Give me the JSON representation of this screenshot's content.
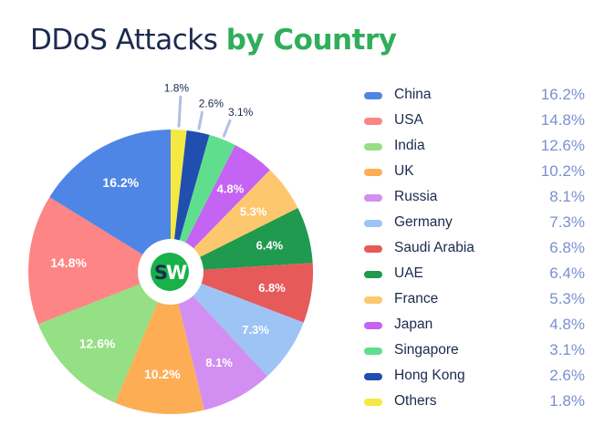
{
  "title": {
    "main": "DDoS Attacks",
    "accent": "by Country"
  },
  "logo": {
    "left": "S",
    "right": "W",
    "bg_color": "#18b14a",
    "left_color": "#1b2a4e",
    "right_color": "#ffffff"
  },
  "colors": {
    "title_text": "#1b2a4e",
    "title_accent": "#2fae5b",
    "legend_value": "#7b8fcf",
    "leader_line": "#aebfe8"
  },
  "chart_data": {
    "type": "pie",
    "title": "DDoS Attacks by Country",
    "donut_hole": true,
    "start_angle": "12 o'clock",
    "direction": "clockwise",
    "legend_position": "right",
    "slices_clockwise_from_top": [
      {
        "label": "Others",
        "value": 1.8,
        "color": "#f4e842",
        "label_outside": true
      },
      {
        "label": "Hong Kong",
        "value": 2.6,
        "color": "#214fb0",
        "label_outside": true
      },
      {
        "label": "Singapore",
        "value": 3.1,
        "color": "#5fdf8d",
        "label_outside": true
      },
      {
        "label": "Japan",
        "value": 4.8,
        "color": "#c563f2",
        "label_outside": false
      },
      {
        "label": "France",
        "value": 5.3,
        "color": "#fdc76e",
        "label_outside": false
      },
      {
        "label": "UAE",
        "value": 6.4,
        "color": "#1f9a4f",
        "label_outside": false
      },
      {
        "label": "Saudi Arabia",
        "value": 6.8,
        "color": "#e75a5a",
        "label_outside": false
      },
      {
        "label": "Germany",
        "value": 7.3,
        "color": "#9dc4f5",
        "label_outside": false
      },
      {
        "label": "Russia",
        "value": 8.1,
        "color": "#d38ef2",
        "label_outside": false
      },
      {
        "label": "UK",
        "value": 10.2,
        "color": "#fdae55",
        "label_outside": false
      },
      {
        "label": "India",
        "value": 12.6,
        "color": "#95df84",
        "label_outside": false
      },
      {
        "label": "USA",
        "value": 14.8,
        "color": "#fd8585",
        "label_outside": false
      },
      {
        "label": "China",
        "value": 16.2,
        "color": "#4f86e5",
        "label_outside": false
      }
    ],
    "unit": "%"
  },
  "legend": [
    {
      "label": "China",
      "value": "16.2%",
      "color": "#4f86e5"
    },
    {
      "label": "USA",
      "value": "14.8%",
      "color": "#fd8585"
    },
    {
      "label": "India",
      "value": "12.6%",
      "color": "#95df84"
    },
    {
      "label": "UK",
      "value": "10.2%",
      "color": "#fdae55"
    },
    {
      "label": "Russia",
      "value": "8.1%",
      "color": "#d38ef2"
    },
    {
      "label": "Germany",
      "value": "7.3%",
      "color": "#9dc4f5"
    },
    {
      "label": "Saudi Arabia",
      "value": "6.8%",
      "color": "#e75a5a"
    },
    {
      "label": "UAE",
      "value": "6.4%",
      "color": "#1f9a4f"
    },
    {
      "label": "France",
      "value": "5.3%",
      "color": "#fdc76e"
    },
    {
      "label": "Japan",
      "value": "4.8%",
      "color": "#c563f2"
    },
    {
      "label": "Singapore",
      "value": "3.1%",
      "color": "#5fdf8d"
    },
    {
      "label": "Hong Kong",
      "value": "2.6%",
      "color": "#214fb0"
    },
    {
      "label": "Others",
      "value": "1.8%",
      "color": "#f4e842"
    }
  ]
}
